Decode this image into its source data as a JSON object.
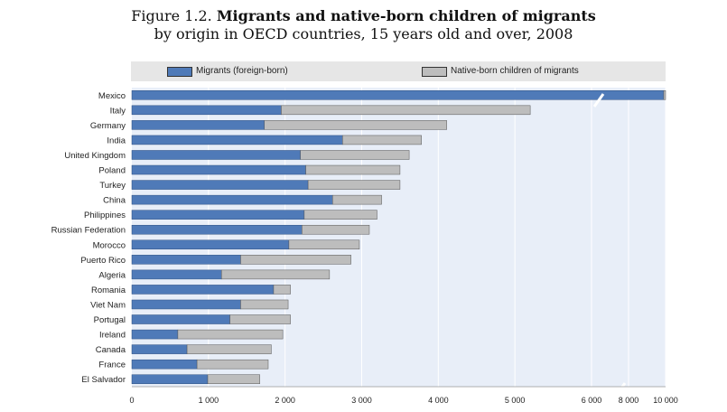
{
  "title": {
    "figure_label": "Figure 1.2.",
    "line1": "Migrants and native-born children of migrants",
    "line2": "by origin in OECD countries, 15 years old and over, 2008"
  },
  "colors": {
    "migrants": "#4f7ab8",
    "native": "#bdbdbd",
    "plot_bg": "#e8eef8",
    "legend_bg": "#e6e6e6"
  },
  "legend": [
    {
      "label": "Migrants (foreign-born)",
      "color": "#4f7ab8"
    },
    {
      "label": "Native-born children of migrants",
      "color": "#bdbdbd"
    }
  ],
  "chart_data": {
    "type": "bar",
    "orientation": "horizontal",
    "stacked": true,
    "title": "Migrants and native-born children of migrants by origin in OECD countries, 15 years old and over, 2008",
    "xlabel": "",
    "ylabel": "",
    "xlim": [
      0,
      10000
    ],
    "ticks": [
      0,
      1000,
      2000,
      3000,
      4000,
      5000,
      6000,
      8000,
      10000
    ],
    "tick_labels": [
      "0",
      "1 000",
      "2 000",
      "3 000",
      "4 000",
      "5 000",
      "6 000",
      "8 000",
      "10 000"
    ],
    "axis_break": true,
    "categories": [
      "Mexico",
      "Italy",
      "Germany",
      "India",
      "United Kingdom",
      "Poland",
      "Turkey",
      "China",
      "Philippines",
      "Russian Federation",
      "Morocco",
      "Puerto Rico",
      "Algeria",
      "Romania",
      "Viet Nam",
      "Portugal",
      "Ireland",
      "Canada",
      "France",
      "El Salvador"
    ],
    "series": [
      {
        "name": "Migrants (foreign-born)",
        "values": [
          9900,
          1950,
          1730,
          2750,
          2200,
          2270,
          2300,
          2620,
          2250,
          2220,
          2050,
          1420,
          1170,
          1850,
          1420,
          1280,
          600,
          720,
          850,
          990
        ]
      },
      {
        "name": "Native-born children of migrants",
        "values": [
          800,
          3250,
          2380,
          1030,
          1420,
          1230,
          1200,
          640,
          950,
          880,
          920,
          1440,
          1410,
          220,
          620,
          790,
          1370,
          1100,
          930,
          680
        ]
      }
    ],
    "legend_position": "top"
  }
}
